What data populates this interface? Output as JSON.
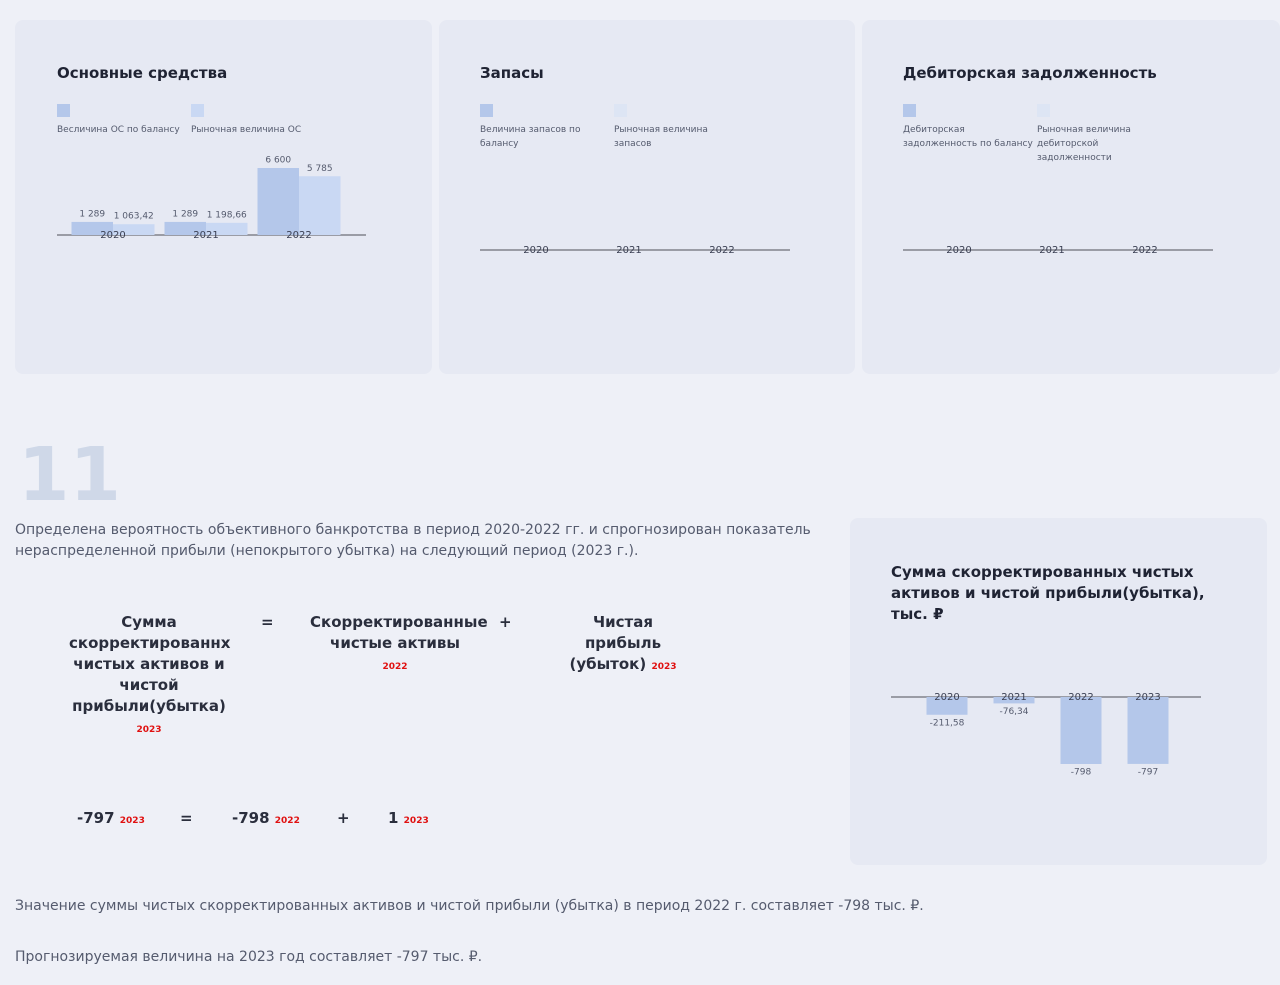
{
  "chart_data": [
    {
      "type": "bar",
      "title": "Основные средства",
      "categories": [
        "2020",
        "2021",
        "2022"
      ],
      "series": [
        {
          "name": "Весличина ОС по балансу",
          "color": "#b4c7ea",
          "values": [
            1289,
            1289,
            6600
          ],
          "value_labels": [
            "1 289",
            "1 289",
            "6 600"
          ]
        },
        {
          "name": "Рыночная величина ОС",
          "color": "#c9d8f3",
          "values": [
            1063.42,
            1198.66,
            5785
          ],
          "value_labels": [
            "1 063,42",
            "1 198,66",
            "5 785"
          ]
        }
      ]
    },
    {
      "type": "bar",
      "title": "Запасы",
      "categories": [
        "2020",
        "2021",
        "2022"
      ],
      "series": [
        {
          "name": "Величина запасов по балансу",
          "color": "#b4c7ea",
          "values": [
            null,
            null,
            null
          ]
        },
        {
          "name": "Рыночная величина запасов",
          "color": "#dde5f4",
          "values": [
            null,
            null,
            null
          ]
        }
      ]
    },
    {
      "type": "bar",
      "title": "Дебиторская задолженность",
      "categories": [
        "2020",
        "2021",
        "2022"
      ],
      "series": [
        {
          "name": "Дебиторская задолженность по балансу",
          "color": "#b4c7ea",
          "values": [
            null,
            null,
            null
          ]
        },
        {
          "name": "Рыночная величина дебиторской задолженности",
          "color": "#dde5f4",
          "values": [
            null,
            null,
            null
          ]
        }
      ]
    },
    {
      "type": "bar",
      "title": "Сумма скорректированных чистых активов и чистой прибыли(убытка), тыс. ₽",
      "categories": [
        "2020",
        "2021",
        "2022",
        "2023"
      ],
      "color": "#b4c7ea",
      "values": [
        -211.58,
        -76.34,
        -798,
        -797
      ],
      "value_labels": [
        "-211,58",
        "-76,34",
        "-798",
        "-797"
      ]
    }
  ],
  "section": {
    "number": "11",
    "intro": "Определена вероятность объективного банкротства в период 2020-2022 гг. и спрогнозирован показатель нераспределенной прибыли (непокрытого убытка) на следующий период (2023 г.).",
    "formula": {
      "left": {
        "label": "Сумма скорректированнх чистых активов и чистой прибыли(убытка)",
        "year": "2023"
      },
      "eq": "=",
      "middle": {
        "label": "Скорректированные чистые активы",
        "year": "2022"
      },
      "plus": "+",
      "right": {
        "label": "Чистая прибыль (убыток)",
        "year": "2023"
      }
    },
    "calc": {
      "result": "-797",
      "result_year": "2023",
      "eq": "=",
      "a": "-798",
      "a_year": "2022",
      "plus": "+",
      "b": "1",
      "b_year": "2023"
    },
    "notes": [
      "Значение суммы чистых скорректированных активов и чистой прибыли (убытка) в период 2022 г. составляет -798 тыс. ₽.",
      "Прогнозируемая величина на 2023 год составляет -797 тыс. ₽."
    ]
  }
}
